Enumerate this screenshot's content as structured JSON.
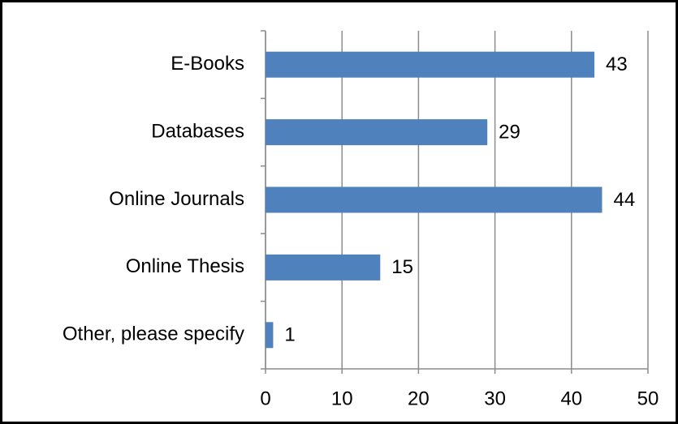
{
  "chart_data": {
    "type": "bar",
    "orientation": "horizontal",
    "categories": [
      "E-Books",
      "Databases",
      "Online Journals",
      "Online Thesis",
      "Other, please specify"
    ],
    "values": [
      43,
      29,
      44,
      15,
      1
    ],
    "color": "#4f81bd",
    "xlim": [
      0,
      50
    ],
    "xticks": [
      0,
      10,
      20,
      30,
      40,
      50
    ],
    "grid": true
  }
}
